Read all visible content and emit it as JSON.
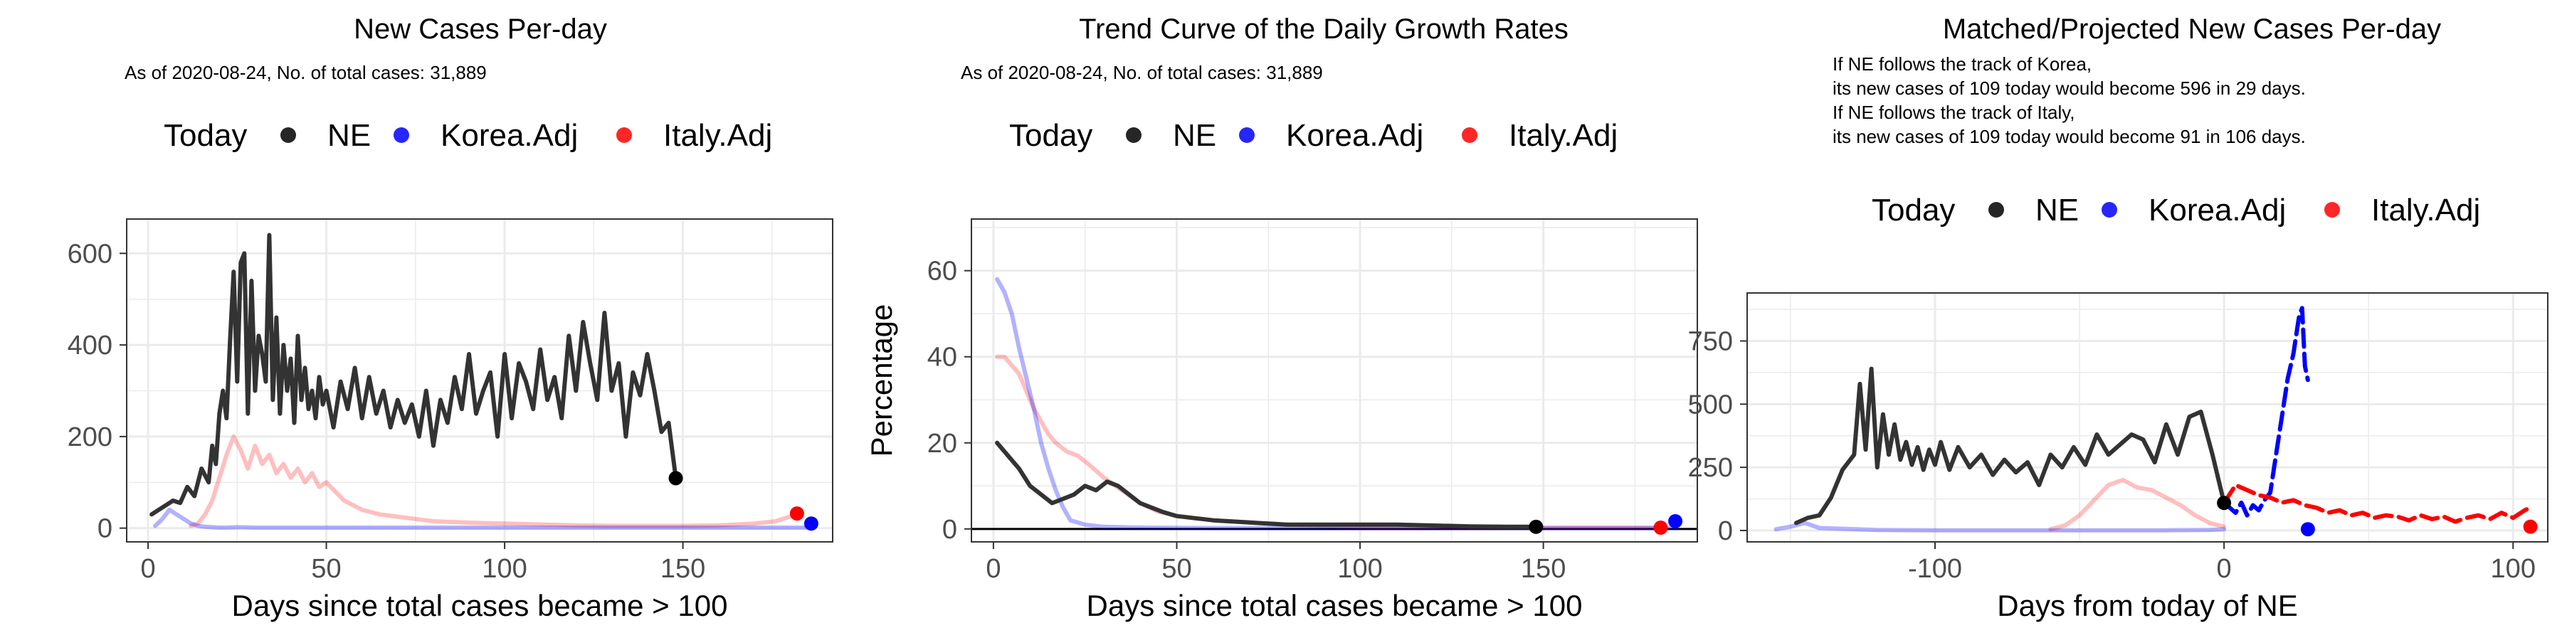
{
  "colors": {
    "ne": "#333333",
    "ne_dot": "#000000",
    "korea": "#0000ff",
    "italy": "#ff0000",
    "grid": "#ebebeb",
    "panel_border": "#333333"
  },
  "chart_data": [
    {
      "type": "line",
      "title": "New Cases Per-day",
      "subtitle": "As of 2020-08-24, No. of total cases: 31,889",
      "subtitle_lines": [],
      "xlabel": "Days since total cases became > 100",
      "ylabel": "",
      "xlim": [
        -6,
        192
      ],
      "ylim": [
        -30,
        675
      ],
      "xticks": [
        0,
        50,
        100,
        150
      ],
      "xtick_labels": [
        "0",
        "50",
        "100",
        "150"
      ],
      "yticks": [
        0,
        200,
        400,
        600
      ],
      "ytick_labels": [
        "0",
        "200",
        "400",
        "600"
      ],
      "hline_zero": false,
      "grid": true,
      "legend": {
        "position": "top",
        "items": [
          "Today",
          "NE",
          "Korea.Adj",
          "Italy.Adj"
        ]
      },
      "series": [
        {
          "name": "NE",
          "color": "#333333",
          "opacity": 1,
          "dash": "",
          "width": 6,
          "x": [
            1,
            3,
            5,
            7,
            9,
            11,
            13,
            15,
            17,
            18,
            19,
            20,
            21,
            22,
            23,
            24,
            25,
            26,
            27,
            28,
            29,
            30,
            31,
            32,
            33,
            34,
            35,
            36,
            37,
            38,
            39,
            40,
            41,
            42,
            43,
            44,
            45,
            46,
            47,
            48,
            49,
            50,
            52,
            54,
            56,
            58,
            60,
            62,
            64,
            66,
            68,
            70,
            72,
            74,
            76,
            78,
            80,
            82,
            84,
            86,
            88,
            90,
            92,
            94,
            96,
            98,
            100,
            102,
            104,
            106,
            108,
            110,
            112,
            114,
            116,
            118,
            120,
            122,
            124,
            126,
            128,
            130,
            132,
            134,
            136,
            138,
            140,
            142,
            144,
            146,
            148
          ],
          "y": [
            30,
            40,
            50,
            60,
            55,
            90,
            70,
            130,
            100,
            180,
            140,
            250,
            300,
            240,
            410,
            560,
            320,
            580,
            600,
            250,
            540,
            300,
            420,
            380,
            320,
            640,
            280,
            460,
            250,
            400,
            300,
            370,
            230,
            420,
            280,
            350,
            260,
            300,
            240,
            330,
            270,
            300,
            220,
            320,
            260,
            350,
            240,
            330,
            250,
            300,
            220,
            280,
            230,
            270,
            200,
            300,
            180,
            280,
            230,
            330,
            260,
            380,
            250,
            300,
            340,
            200,
            380,
            240,
            360,
            320,
            260,
            390,
            280,
            330,
            240,
            420,
            300,
            450,
            360,
            280,
            470,
            300,
            360,
            200,
            340,
            290,
            380,
            300,
            210,
            230,
            110
          ]
        },
        {
          "name": "Korea.Adj",
          "color": "#0000ff",
          "opacity": 0.3,
          "dash": "",
          "width": 6,
          "x": [
            2,
            4,
            6,
            8,
            10,
            12,
            14,
            16,
            18,
            20,
            22,
            25,
            30,
            40,
            60,
            80,
            100,
            120,
            140,
            160,
            180,
            186
          ],
          "y": [
            5,
            20,
            40,
            30,
            20,
            10,
            5,
            3,
            2,
            1,
            1,
            2,
            1,
            1,
            1,
            1,
            1,
            1,
            1,
            1,
            1,
            1
          ]
        },
        {
          "name": "Italy.Adj",
          "color": "#ff0000",
          "opacity": 0.25,
          "dash": "",
          "width": 6,
          "x": [
            12,
            14,
            16,
            18,
            20,
            22,
            24,
            26,
            28,
            30,
            32,
            34,
            36,
            38,
            40,
            42,
            44,
            46,
            48,
            50,
            55,
            60,
            65,
            70,
            75,
            80,
            90,
            100,
            110,
            120,
            130,
            140,
            150,
            160,
            170,
            176,
            180,
            182
          ],
          "y": [
            5,
            10,
            30,
            60,
            110,
            160,
            200,
            170,
            130,
            180,
            140,
            160,
            120,
            140,
            110,
            130,
            100,
            120,
            90,
            100,
            60,
            40,
            30,
            25,
            20,
            15,
            12,
            10,
            8,
            6,
            5,
            5,
            5,
            6,
            10,
            15,
            25,
            32
          ]
        }
      ],
      "points": [
        {
          "series": "NE",
          "x": 148,
          "y": 109,
          "color": "#000000"
        },
        {
          "series": "Italy.Adj",
          "x": 182,
          "y": 32,
          "color": "#ff0000"
        },
        {
          "series": "Korea.Adj",
          "x": 186,
          "y": 10,
          "color": "#0000ff"
        }
      ]
    },
    {
      "type": "line",
      "title": "Trend Curve of the Daily Growth Rates",
      "subtitle": "As of 2020-08-24, No. of total cases: 31,889",
      "subtitle_lines": [],
      "xlabel": "Days since total cases became > 100",
      "ylabel": "Percentage",
      "xlim": [
        -6,
        192
      ],
      "ylim": [
        -3,
        72
      ],
      "xticks": [
        0,
        50,
        100,
        150
      ],
      "xtick_labels": [
        "0",
        "50",
        "100",
        "150"
      ],
      "yticks": [
        0,
        20,
        40,
        60
      ],
      "ytick_labels": [
        "0",
        "20",
        "40",
        "60"
      ],
      "hline_zero": true,
      "grid": true,
      "legend": {
        "position": "top",
        "items": [
          "Today",
          "NE",
          "Korea.Adj",
          "Italy.Adj"
        ]
      },
      "series": [
        {
          "name": "NE",
          "color": "#333333",
          "opacity": 1,
          "dash": "",
          "width": 6,
          "x": [
            1,
            4,
            7,
            10,
            13,
            16,
            19,
            22,
            25,
            28,
            31,
            34,
            37,
            40,
            43,
            46,
            50,
            55,
            60,
            70,
            80,
            90,
            100,
            110,
            120,
            130,
            140,
            148
          ],
          "y": [
            20,
            17,
            14,
            10,
            8,
            6,
            7,
            8,
            10,
            9,
            11,
            10,
            8,
            6,
            5,
            4,
            3,
            2.5,
            2,
            1.5,
            1,
            1,
            1,
            1,
            0.8,
            0.6,
            0.5,
            0.5
          ]
        },
        {
          "name": "Korea.Adj",
          "color": "#0000ff",
          "opacity": 0.3,
          "dash": "",
          "width": 6,
          "x": [
            1,
            3,
            5,
            7,
            9,
            11,
            13,
            15,
            17,
            19,
            21,
            25,
            30,
            40,
            60,
            100,
            140,
            180,
            186
          ],
          "y": [
            58,
            55,
            50,
            42,
            35,
            28,
            20,
            14,
            9,
            5,
            2,
            1,
            0.5,
            0.3,
            0.2,
            0.2,
            0.2,
            0.2,
            0.2
          ]
        },
        {
          "name": "Italy.Adj",
          "color": "#ff0000",
          "opacity": 0.25,
          "dash": "",
          "width": 6,
          "x": [
            1,
            3,
            5,
            7,
            9,
            11,
            13,
            15,
            17,
            20,
            23,
            26,
            30,
            35,
            40,
            45,
            50,
            60,
            70,
            80,
            100,
            120,
            140,
            160,
            182
          ],
          "y": [
            40,
            40,
            38,
            36,
            32,
            28,
            25,
            22,
            20,
            18,
            17,
            15,
            12,
            9,
            6,
            4,
            3,
            2,
            1.5,
            1,
            0.5,
            0.4,
            0.3,
            0.3,
            0.3
          ]
        }
      ],
      "points": [
        {
          "series": "NE",
          "x": 148,
          "y": 0.5,
          "color": "#000000"
        },
        {
          "series": "Italy.Adj",
          "x": 182,
          "y": 0.3,
          "color": "#ff0000"
        },
        {
          "series": "Korea.Adj",
          "x": 186,
          "y": 1.8,
          "color": "#0000ff"
        }
      ]
    },
    {
      "type": "line",
      "title": "Matched/Projected New Cases Per-day",
      "subtitle": "",
      "subtitle_lines": [
        "If NE follows the track of Korea,",
        "its new cases of 109 today would become 596 in 29 days.",
        "If NE follows the track of Italy,",
        "its new cases of 109 today would become 91 in 106 days."
      ],
      "xlabel": "Days from today of NE",
      "ylabel": "",
      "xlim": [
        -165,
        112
      ],
      "ylim": [
        -45,
        940
      ],
      "xticks": [
        -100,
        0,
        100
      ],
      "xtick_labels": [
        "-100",
        "0",
        "100"
      ],
      "yticks": [
        0,
        250,
        500,
        750
      ],
      "ytick_labels": [
        "0",
        "250",
        "500",
        "750"
      ],
      "hline_zero": false,
      "grid": true,
      "legend": {
        "position": "top",
        "items": [
          "Today",
          "NE",
          "Korea.Adj",
          "Italy.Adj"
        ]
      },
      "series": [
        {
          "name": "NE",
          "color": "#333333",
          "opacity": 1,
          "dash": "",
          "width": 6,
          "x": [
            -148,
            -144,
            -140,
            -136,
            -132,
            -128,
            -126,
            -124,
            -122,
            -120,
            -118,
            -116,
            -114,
            -112,
            -110,
            -108,
            -106,
            -104,
            -102,
            -100,
            -98,
            -95,
            -92,
            -88,
            -84,
            -80,
            -76,
            -72,
            -68,
            -64,
            -60,
            -56,
            -52,
            -48,
            -44,
            -40,
            -36,
            -32,
            -28,
            -24,
            -20,
            -16,
            -12,
            -8,
            -4,
            0
          ],
          "y": [
            30,
            50,
            60,
            130,
            240,
            300,
            580,
            320,
            640,
            250,
            460,
            300,
            420,
            280,
            350,
            260,
            330,
            240,
            320,
            260,
            350,
            240,
            330,
            250,
            300,
            220,
            280,
            230,
            270,
            180,
            300,
            250,
            330,
            260,
            380,
            300,
            340,
            380,
            360,
            270,
            420,
            300,
            450,
            470,
            300,
            110
          ]
        },
        {
          "name": "Korea.Adj",
          "color": "#0000ff",
          "opacity": 0.3,
          "dash": "",
          "width": 6,
          "x": [
            -155,
            -150,
            -145,
            -140,
            -120,
            -100,
            -80,
            -60,
            -40,
            -20,
            -5,
            0
          ],
          "y": [
            5,
            15,
            30,
            10,
            2,
            1,
            1,
            1,
            1,
            1,
            2,
            5
          ]
        },
        {
          "name": "Italy.Adj",
          "color": "#ff0000",
          "opacity": 0.25,
          "dash": "",
          "width": 6,
          "x": [
            -60,
            -55,
            -50,
            -45,
            -40,
            -35,
            -30,
            -25,
            -20,
            -15,
            -10,
            -5,
            0
          ],
          "y": [
            5,
            20,
            60,
            120,
            180,
            200,
            170,
            160,
            130,
            100,
            60,
            30,
            15
          ]
        },
        {
          "name": "Korea.Adj projection",
          "color": "#0000ff",
          "opacity": 1,
          "dash": "24 10",
          "width": 6,
          "x": [
            0,
            2,
            4,
            6,
            8,
            10,
            12,
            14,
            16,
            18,
            20,
            22,
            24,
            26,
            27,
            28,
            29
          ],
          "y": [
            109,
            90,
            70,
            110,
            60,
            100,
            80,
            120,
            150,
            300,
            450,
            600,
            700,
            850,
            880,
            650,
            596
          ]
        },
        {
          "name": "Italy.Adj projection",
          "color": "#ff0000",
          "opacity": 1,
          "dash": "24 10",
          "width": 6,
          "x": [
            0,
            4,
            8,
            12,
            16,
            20,
            24,
            28,
            32,
            36,
            40,
            44,
            48,
            52,
            56,
            60,
            64,
            68,
            72,
            76,
            80,
            84,
            88,
            92,
            96,
            100,
            104,
            106
          ],
          "y": [
            109,
            180,
            160,
            140,
            130,
            110,
            120,
            100,
            90,
            70,
            80,
            60,
            70,
            50,
            60,
            55,
            40,
            60,
            45,
            55,
            35,
            50,
            60,
            45,
            70,
            50,
            80,
            91
          ]
        }
      ],
      "points": [
        {
          "series": "NE",
          "x": 0,
          "y": 109,
          "color": "#000000"
        },
        {
          "series": "Korea.Adj",
          "x": 29,
          "y": 5,
          "color": "#0000ff"
        },
        {
          "series": "Italy.Adj",
          "x": 106,
          "y": 15,
          "color": "#ff0000"
        }
      ]
    }
  ]
}
